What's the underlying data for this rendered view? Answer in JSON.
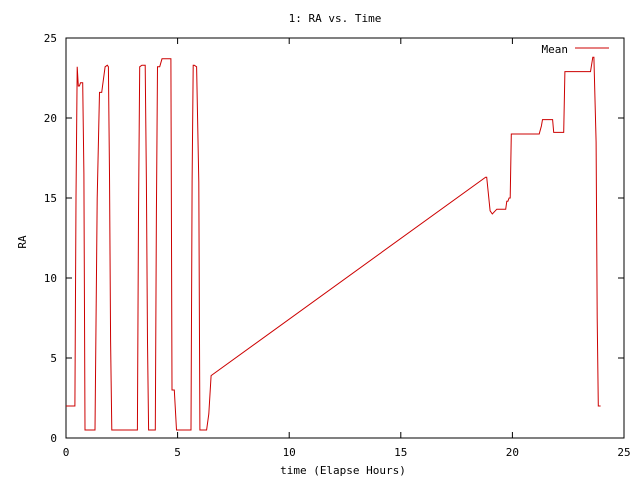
{
  "chart_data": {
    "type": "line",
    "title": "1: RA vs. Time",
    "xlabel": "time (Elapse Hours)",
    "ylabel": "RA",
    "xlim": [
      0,
      25
    ],
    "ylim": [
      0,
      25
    ],
    "xticks": [
      "0",
      "5",
      "10",
      "15",
      "20",
      "25"
    ],
    "yticks": [
      "0",
      "5",
      "10",
      "15",
      "20",
      "25"
    ],
    "grid": false,
    "legend_position": "top-right",
    "series": [
      {
        "name": "Mean",
        "color": "#cc0000",
        "x": [
          0,
          0.4,
          0.45,
          0.5,
          0.55,
          0.6,
          0.65,
          0.75,
          0.8,
          0.85,
          0.9,
          1.0,
          1.1,
          1.2,
          1.3,
          1.4,
          1.5,
          1.55,
          1.6,
          1.75,
          1.85,
          1.9,
          1.95,
          2.0,
          2.05,
          2.1,
          2.15,
          2.5,
          3.0,
          3.2,
          3.25,
          3.3,
          3.4,
          3.55,
          3.6,
          3.65,
          3.7,
          4.0,
          4.05,
          4.1,
          4.2,
          4.3,
          4.5,
          4.7,
          4.75,
          4.8,
          4.85,
          4.95,
          5.0,
          5.6,
          5.65,
          5.7,
          5.75,
          5.85,
          5.95,
          6.0,
          6.3,
          6.4,
          6.5,
          18.8,
          18.85,
          19.0,
          19.1,
          19.3,
          19.7,
          19.75,
          19.8,
          19.85,
          19.9,
          19.95,
          20.5,
          21.2,
          21.3,
          21.35,
          21.8,
          21.85,
          22.2,
          22.3,
          22.35,
          23.5,
          23.6,
          23.65,
          23.75,
          23.8,
          23.85,
          23.9,
          23.95
        ],
        "y": [
          2.0,
          2.0,
          15.0,
          23.2,
          22.0,
          22.0,
          22.2,
          22.2,
          16.5,
          0.5,
          0.5,
          0.5,
          0.5,
          0.5,
          0.5,
          15.0,
          21.6,
          21.6,
          21.6,
          23.2,
          23.3,
          23.2,
          16.5,
          6.0,
          0.5,
          0.5,
          0.5,
          0.5,
          0.5,
          0.5,
          14.0,
          23.2,
          23.3,
          23.3,
          16.0,
          6.0,
          0.5,
          0.5,
          14.0,
          23.2,
          23.2,
          23.7,
          23.7,
          23.7,
          3.0,
          3.0,
          3.0,
          0.5,
          0.5,
          0.5,
          16.0,
          23.3,
          23.3,
          23.2,
          16.0,
          0.5,
          0.5,
          1.5,
          3.9,
          16.3,
          16.3,
          14.2,
          14.0,
          14.3,
          14.3,
          14.8,
          14.8,
          15.0,
          15.0,
          19.0,
          19.0,
          19.0,
          19.5,
          19.9,
          19.9,
          19.1,
          19.1,
          19.1,
          22.9,
          22.9,
          23.8,
          23.8,
          18.5,
          7.5,
          2.0,
          2.0,
          2.0
        ]
      }
    ]
  }
}
